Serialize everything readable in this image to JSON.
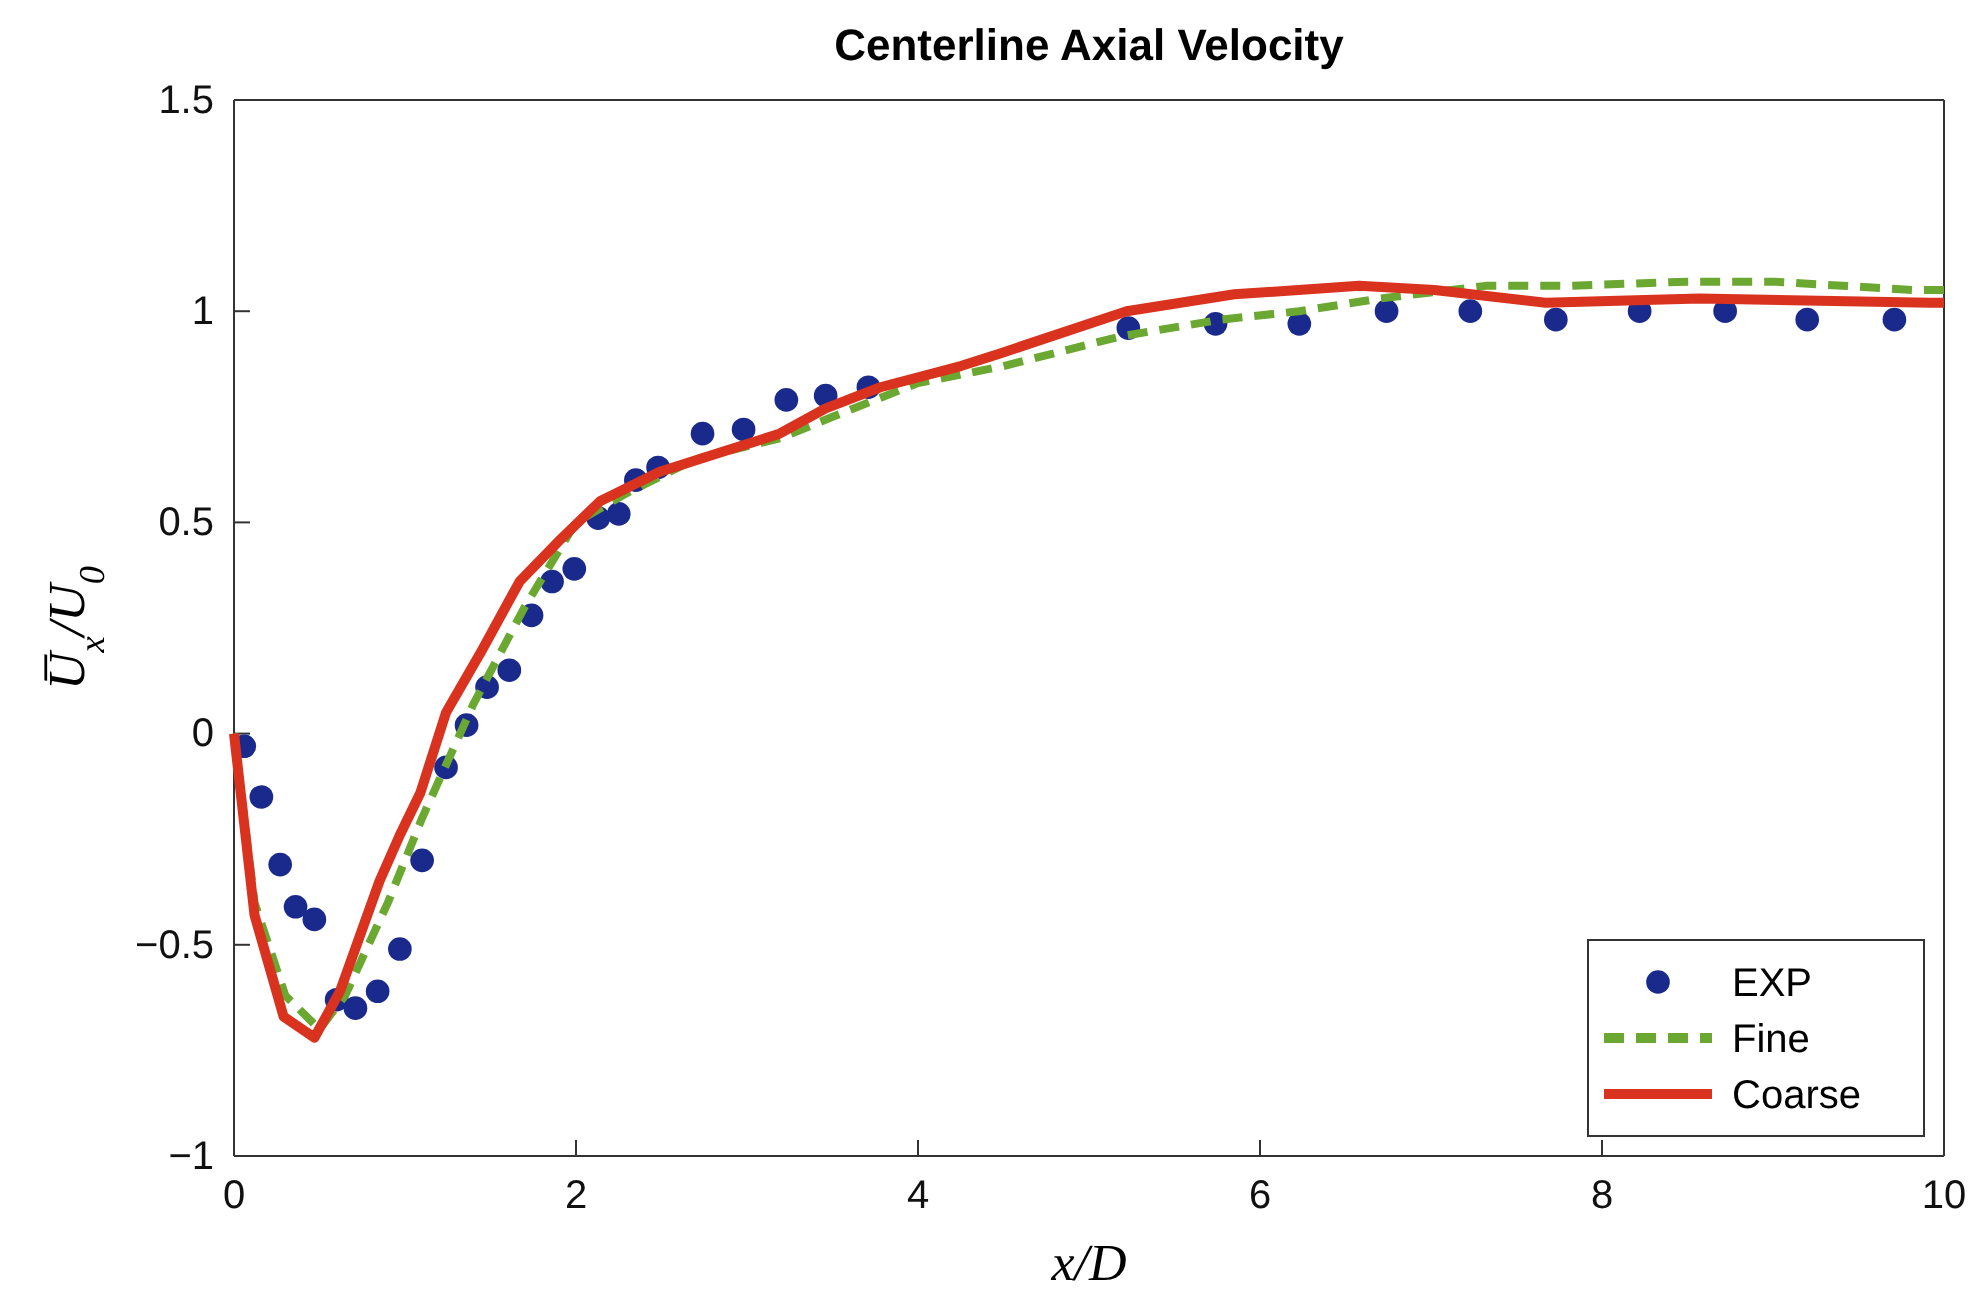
{
  "chart_data": {
    "type": "line",
    "title": "Centerline Axial Velocity",
    "xlabel": "x/D",
    "ylabel": "U̅$_{x}$/U$_{0}$",
    "xlim": [
      0,
      10
    ],
    "xticks": [
      0,
      2,
      4,
      6,
      8,
      10
    ],
    "ylim": [
      -1,
      1.5
    ],
    "yticks": [
      -1,
      -0.5,
      0,
      0.5,
      1,
      1.5
    ],
    "grid": false,
    "legend": "bottom right",
    "series": [
      {
        "name": "EXP",
        "type": "scatter",
        "marker": "circle",
        "color": "#1a2a8c",
        "x": [
          0.06,
          0.16,
          0.27,
          0.36,
          0.47,
          0.6,
          0.71,
          0.84,
          0.97,
          1.1,
          1.24,
          1.36,
          1.48,
          1.61,
          1.74,
          1.86,
          1.99,
          2.13,
          2.25,
          2.35,
          2.48,
          2.74,
          2.98,
          3.23,
          3.46,
          3.71,
          5.23,
          5.74,
          6.23,
          6.74,
          7.23,
          7.73,
          8.22,
          8.72,
          9.2,
          9.71
        ],
        "values": [
          -0.03,
          -0.15,
          -0.31,
          -0.41,
          -0.44,
          -0.63,
          -0.65,
          -0.61,
          -0.51,
          -0.3,
          -0.08,
          0.02,
          0.11,
          0.15,
          0.28,
          0.36,
          0.39,
          0.51,
          0.52,
          0.6,
          0.63,
          0.71,
          0.72,
          0.79,
          0.8,
          0.82,
          0.96,
          0.97,
          0.97,
          1.0,
          1.0,
          0.98,
          1.0,
          1.0,
          0.98,
          0.98
        ]
      },
      {
        "name": "Fine",
        "line_style": "dashed",
        "color": "#6aa832",
        "x": [
          0,
          0.12,
          0.3,
          0.5,
          0.65,
          0.9,
          1.1,
          1.4,
          1.7,
          2.0,
          2.3,
          2.7,
          3.2,
          3.5,
          4.0,
          4.5,
          5.18,
          5.77,
          6.23,
          6.7,
          7.32,
          7.8,
          8.5,
          9.0,
          9.83,
          10
        ],
        "values": [
          0,
          -0.4,
          -0.62,
          -0.7,
          -0.62,
          -0.4,
          -0.2,
          0.07,
          0.3,
          0.5,
          0.57,
          0.65,
          0.7,
          0.75,
          0.83,
          0.87,
          0.94,
          0.98,
          1.0,
          1.03,
          1.06,
          1.06,
          1.07,
          1.07,
          1.05,
          1.05
        ]
      },
      {
        "name": "Coarse",
        "line_style": "solid",
        "color": "#d9321e",
        "x": [
          0,
          0.12,
          0.29,
          0.47,
          0.62,
          0.85,
          0.97,
          1.09,
          1.24,
          1.44,
          1.67,
          1.91,
          2.14,
          2.49,
          2.88,
          3.19,
          3.46,
          3.78,
          4.25,
          4.48,
          5.22,
          5.85,
          6.58,
          7.02,
          7.67,
          8.57,
          9.92,
          10
        ],
        "values": [
          0,
          -0.43,
          -0.67,
          -0.72,
          -0.61,
          -0.35,
          -0.24,
          -0.14,
          0.05,
          0.19,
          0.36,
          0.46,
          0.55,
          0.62,
          0.67,
          0.71,
          0.77,
          0.82,
          0.87,
          0.9,
          1.0,
          1.04,
          1.06,
          1.05,
          1.02,
          1.03,
          1.02,
          1.02
        ]
      }
    ]
  }
}
